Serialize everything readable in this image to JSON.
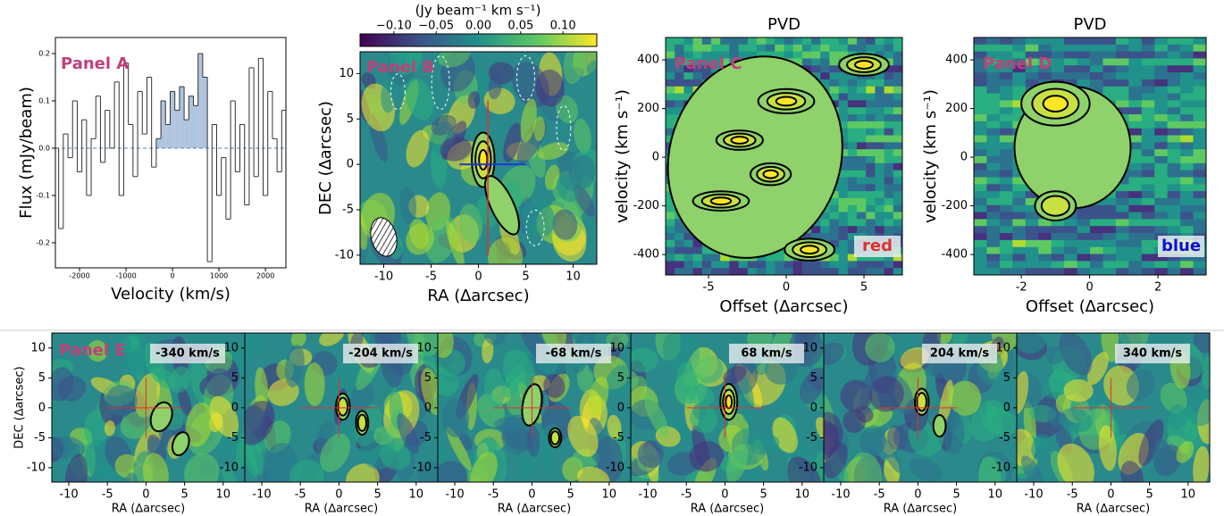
{
  "chart_data": [
    {
      "type": "step",
      "label": "Panel A",
      "xlabel": "Velocity (km/s)",
      "ylabel": "Flux (mJy/beam)",
      "x": [
        -2600,
        -2500,
        -2400,
        -2300,
        -2200,
        -2100,
        -2000,
        -1900,
        -1800,
        -1700,
        -1600,
        -1500,
        -1400,
        -1300,
        -1200,
        -1100,
        -1000,
        -900,
        -800,
        -700,
        -600,
        -500,
        -400,
        -300,
        -200,
        -100,
        0,
        100,
        200,
        300,
        400,
        500,
        600,
        700,
        800,
        900,
        1000,
        1100,
        1200,
        1300,
        1400,
        1500,
        1600,
        1700,
        1800,
        1900,
        2000,
        2100,
        2200,
        2300,
        2400,
        2500,
        2600
      ],
      "values": [
        0.07,
        0.0,
        -0.17,
        0.03,
        -0.02,
        0.1,
        -0.05,
        0.06,
        -0.1,
        0.02,
        0.11,
        -0.03,
        0.08,
        0.0,
        0.14,
        -0.1,
        0.18,
        0.05,
        -0.06,
        0.12,
        0.03,
        0.15,
        -0.04,
        0.02,
        0.1,
        0.05,
        0.12,
        0.08,
        0.13,
        0.06,
        0.11,
        0.09,
        0.2,
        0.15,
        -0.24,
        0.05,
        -0.1,
        -0.02,
        -0.15,
        0.1,
        -0.05,
        0.05,
        -0.12,
        0.17,
        -0.06,
        0.19,
        -0.1,
        0.12,
        0.02,
        -0.05,
        0.08,
        -0.03,
        0.09
      ],
      "highlight_xlim": [
        -300,
        750
      ],
      "color": "#333333",
      "fill": "#b0c4de",
      "xlim": [
        -2520,
        2440
      ],
      "ylim": [
        -0.253,
        0.234
      ],
      "xticks": [
        -2000,
        -1000,
        0,
        1000,
        2000
      ],
      "yticks": [
        -0.2,
        -0.1,
        {
          "value": 0,
          "label": "0.0"
        },
        0.1,
        0.2
      ]
    },
    {
      "type": "map",
      "label": "Panel B",
      "xlabel": "RA (∆arcsec)",
      "ylabel": "DEC (∆arcsec)",
      "xlim": [
        -12.5,
        12.5
      ],
      "ylim": [
        -11,
        12.4
      ],
      "xticks": [
        -10,
        -5,
        0,
        5,
        10
      ],
      "yticks": [
        -10,
        -5,
        0,
        5,
        10
      ],
      "colorbar": {
        "label": "(Jy beam⁻¹ km s⁻¹)",
        "lim": [
          -0.14,
          0.14
        ],
        "ticks": [
          {
            "value": -0.1,
            "label": "−0.10"
          },
          {
            "value": -0.05,
            "label": "−0.05"
          },
          {
            "value": 0,
            "label": "0.00"
          },
          {
            "value": 0.05,
            "label": "0.05"
          },
          {
            "value": 0.1,
            "label": "0.10"
          }
        ]
      }
    },
    {
      "type": "pvd",
      "title": "PVD",
      "label": "Panel C",
      "tag": "red",
      "tag_color": "#e03030",
      "xlabel": "Offset (∆arcsec)",
      "ylabel": "velocity (km s⁻¹)",
      "xlim": [
        -7.76,
        7.47
      ],
      "ylim": [
        -484,
        492
      ],
      "xticks": [
        -5,
        0,
        5
      ],
      "yticks": [
        -400,
        -200,
        0,
        200,
        400
      ]
    },
    {
      "type": "pvd",
      "title": "PVD",
      "label": "Panel D",
      "tag": "blue",
      "tag_color": "#1010d0",
      "xlabel": "Offset (∆arcsec)",
      "ylabel": "velocity (km s⁻¹)",
      "xlim": [
        -3.39,
        3.41
      ],
      "ylim": [
        -484,
        492
      ],
      "xticks": [
        -2,
        0,
        2
      ],
      "yticks": [
        -400,
        -200,
        0,
        200,
        400
      ]
    },
    {
      "type": "channels",
      "label": "Panel E",
      "xlabel": "RA (∆arcsec)",
      "ylabel": "DEC (∆arcsec)",
      "xlim": [
        -12.2,
        12.8
      ],
      "ylim": [
        -12.4,
        12.5
      ],
      "xticks": [
        -10,
        -5,
        0,
        5,
        10
      ],
      "yticks": [
        -10,
        -5,
        0,
        5,
        10
      ],
      "panels": [
        {
          "label": "-340 km/s"
        },
        {
          "label": "-204 km/s"
        },
        {
          "label": "-68 km/s"
        },
        {
          "label": "68 km/s"
        },
        {
          "label": "204 km/s"
        },
        {
          "label": "340 km/s"
        }
      ]
    }
  ]
}
